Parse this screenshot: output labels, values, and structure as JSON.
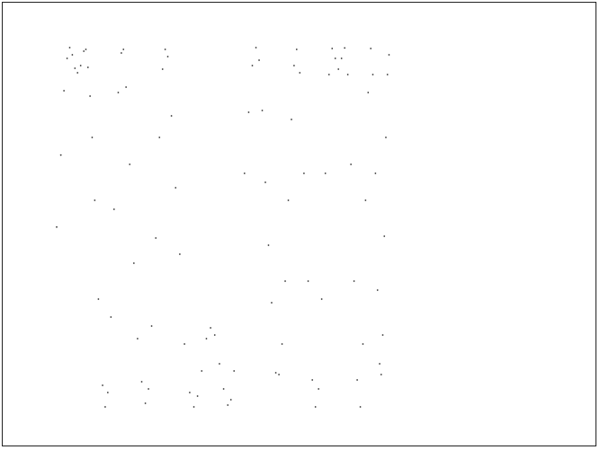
{
  "chart_data": {
    "type": "scatter",
    "title": "",
    "xlabel": "",
    "ylabel": "",
    "axes_visible": false,
    "grid": false,
    "xlim": [
      0,
      1
    ],
    "ylim": [
      -1.05,
      1.05
    ],
    "marker_color": "#333333",
    "background": "#ffffff",
    "frame_color": "#222222",
    "series": [
      {
        "points": [
          [
            0.0,
            0.001
          ],
          [
            0.008,
            0.402
          ],
          [
            0.014,
            0.76
          ],
          [
            0.02,
            0.94
          ],
          [
            0.025,
            1.0
          ],
          [
            0.03,
            0.96
          ],
          [
            0.035,
            0.885
          ],
          [
            0.04,
            0.86
          ],
          [
            0.046,
            0.9
          ],
          [
            0.052,
            0.98
          ],
          [
            0.056,
            0.99
          ],
          [
            0.06,
            0.89
          ],
          [
            0.064,
            0.73
          ],
          [
            0.068,
            0.5
          ],
          [
            0.073,
            0.15
          ],
          [
            0.08,
            -0.4
          ],
          [
            0.088,
            -0.88
          ],
          [
            0.093,
            -1.0
          ],
          [
            0.098,
            -0.92
          ],
          [
            0.104,
            -0.5
          ],
          [
            0.11,
            0.1
          ],
          [
            0.118,
            0.75
          ],
          [
            0.124,
            0.97
          ],
          [
            0.128,
            0.99
          ],
          [
            0.133,
            0.78
          ],
          [
            0.14,
            0.35
          ],
          [
            0.148,
            -0.2
          ],
          [
            0.155,
            -0.62
          ],
          [
            0.163,
            -0.86
          ],
          [
            0.17,
            -0.98
          ],
          [
            0.176,
            -0.9
          ],
          [
            0.182,
            -0.55
          ],
          [
            0.19,
            -0.06
          ],
          [
            0.197,
            0.5
          ],
          [
            0.203,
            0.88
          ],
          [
            0.208,
            0.99
          ],
          [
            0.213,
            0.95
          ],
          [
            0.22,
            0.62
          ],
          [
            0.228,
            0.22
          ],
          [
            0.236,
            -0.15
          ],
          [
            0.245,
            -0.65
          ],
          [
            0.255,
            -0.92
          ],
          [
            0.263,
            -1.0
          ],
          [
            0.27,
            -0.94
          ],
          [
            0.278,
            -0.8
          ],
          [
            0.287,
            -0.62
          ],
          [
            0.295,
            -0.56
          ],
          [
            0.303,
            -0.6
          ],
          [
            0.312,
            -0.76
          ],
          [
            0.32,
            -0.9
          ],
          [
            0.328,
            -0.99
          ],
          [
            0.334,
            -0.96
          ],
          [
            0.34,
            -0.8
          ]
        ]
      },
      {
        "points": [
          [
            0.36,
            0.3
          ],
          [
            0.368,
            0.64
          ],
          [
            0.375,
            0.9
          ],
          [
            0.382,
            1.0
          ],
          [
            0.388,
            0.93
          ],
          [
            0.394,
            0.65
          ],
          [
            0.4,
            0.25
          ],
          [
            0.406,
            -0.1
          ],
          [
            0.412,
            -0.42
          ],
          [
            0.42,
            -0.81
          ],
          [
            0.426,
            -0.82
          ],
          [
            0.432,
            -0.65
          ],
          [
            0.438,
            -0.3
          ],
          [
            0.444,
            0.15
          ],
          [
            0.45,
            0.6
          ],
          [
            0.455,
            0.9
          ],
          [
            0.46,
            0.99
          ],
          [
            0.466,
            0.86
          ],
          [
            0.474,
            0.3
          ],
          [
            0.482,
            -0.3
          ],
          [
            0.49,
            -0.85
          ],
          [
            0.496,
            -1.0
          ],
          [
            0.502,
            -0.9
          ],
          [
            0.508,
            -0.4
          ],
          [
            0.515,
            0.3
          ],
          [
            0.522,
            0.85
          ],
          [
            0.528,
            0.995
          ],
          [
            0.534,
            0.94
          ],
          [
            0.54,
            0.88
          ],
          [
            0.546,
            0.94
          ],
          [
            0.552,
            0.998
          ],
          [
            0.558,
            0.85
          ],
          [
            0.564,
            0.35
          ],
          [
            0.57,
            -0.3
          ],
          [
            0.576,
            -0.85
          ],
          [
            0.582,
            -1.0
          ],
          [
            0.587,
            -0.65
          ],
          [
            0.592,
            0.15
          ],
          [
            0.597,
            0.75
          ],
          [
            0.602,
            0.995
          ],
          [
            0.606,
            0.85
          ],
          [
            0.611,
            0.3
          ],
          [
            0.615,
            -0.35
          ],
          [
            0.619,
            -0.76
          ],
          [
            0.622,
            -0.82
          ],
          [
            0.625,
            -0.6
          ],
          [
            0.628,
            -0.05
          ],
          [
            0.631,
            0.5
          ],
          [
            0.634,
            0.85
          ],
          [
            0.637,
            0.96
          ]
        ]
      }
    ]
  }
}
